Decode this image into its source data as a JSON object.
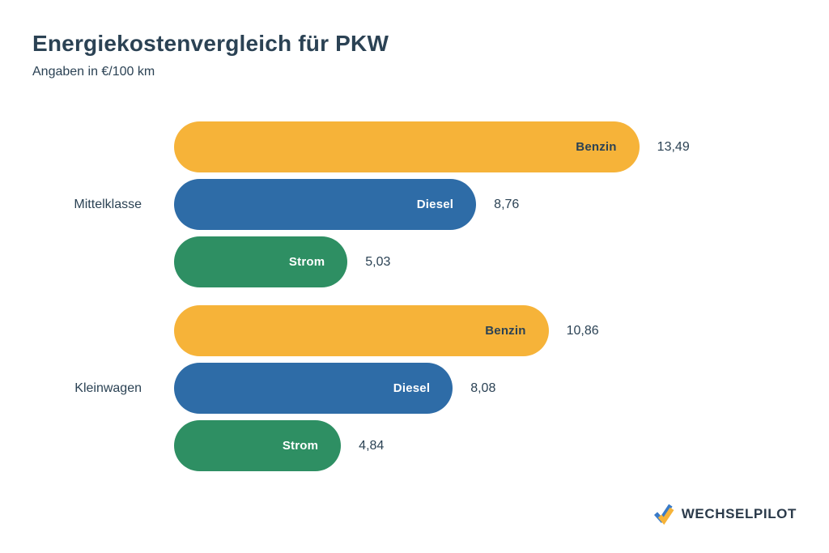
{
  "header": {
    "title": "Energiekostenvergleich für PKW",
    "subtitle": "Angaben in €/100 km"
  },
  "chart_data": {
    "type": "bar",
    "orientation": "horizontal",
    "unit": "€/100 km",
    "xlim": [
      0,
      13.49
    ],
    "grid": false,
    "legend": "labels-inside-bars",
    "groups": [
      {
        "category": "Mittelklasse",
        "bars": [
          {
            "label": "Benzin",
            "value": 13.49,
            "display": "13,49",
            "color": "#F6B339",
            "label_color": "#2B4254"
          },
          {
            "label": "Diesel",
            "value": 8.76,
            "display": "8,76",
            "color": "#2E6CA7",
            "label_color": "#FFFFFF"
          },
          {
            "label": "Strom",
            "value": 5.03,
            "display": "5,03",
            "color": "#2E8F63",
            "label_color": "#FFFFFF"
          }
        ]
      },
      {
        "category": "Kleinwagen",
        "bars": [
          {
            "label": "Benzin",
            "value": 10.86,
            "display": "10,86",
            "color": "#F6B339",
            "label_color": "#2B4254"
          },
          {
            "label": "Diesel",
            "value": 8.08,
            "display": "8,08",
            "color": "#2E6CA7",
            "label_color": "#FFFFFF"
          },
          {
            "label": "Strom",
            "value": 4.84,
            "display": "4,84",
            "color": "#2E8F63",
            "label_color": "#FFFFFF"
          }
        ]
      }
    ]
  },
  "footer": {
    "brand": "WECHSELPILOT",
    "logo_colors": {
      "blue": "#3A7BC8",
      "yellow": "#F6B339"
    }
  }
}
